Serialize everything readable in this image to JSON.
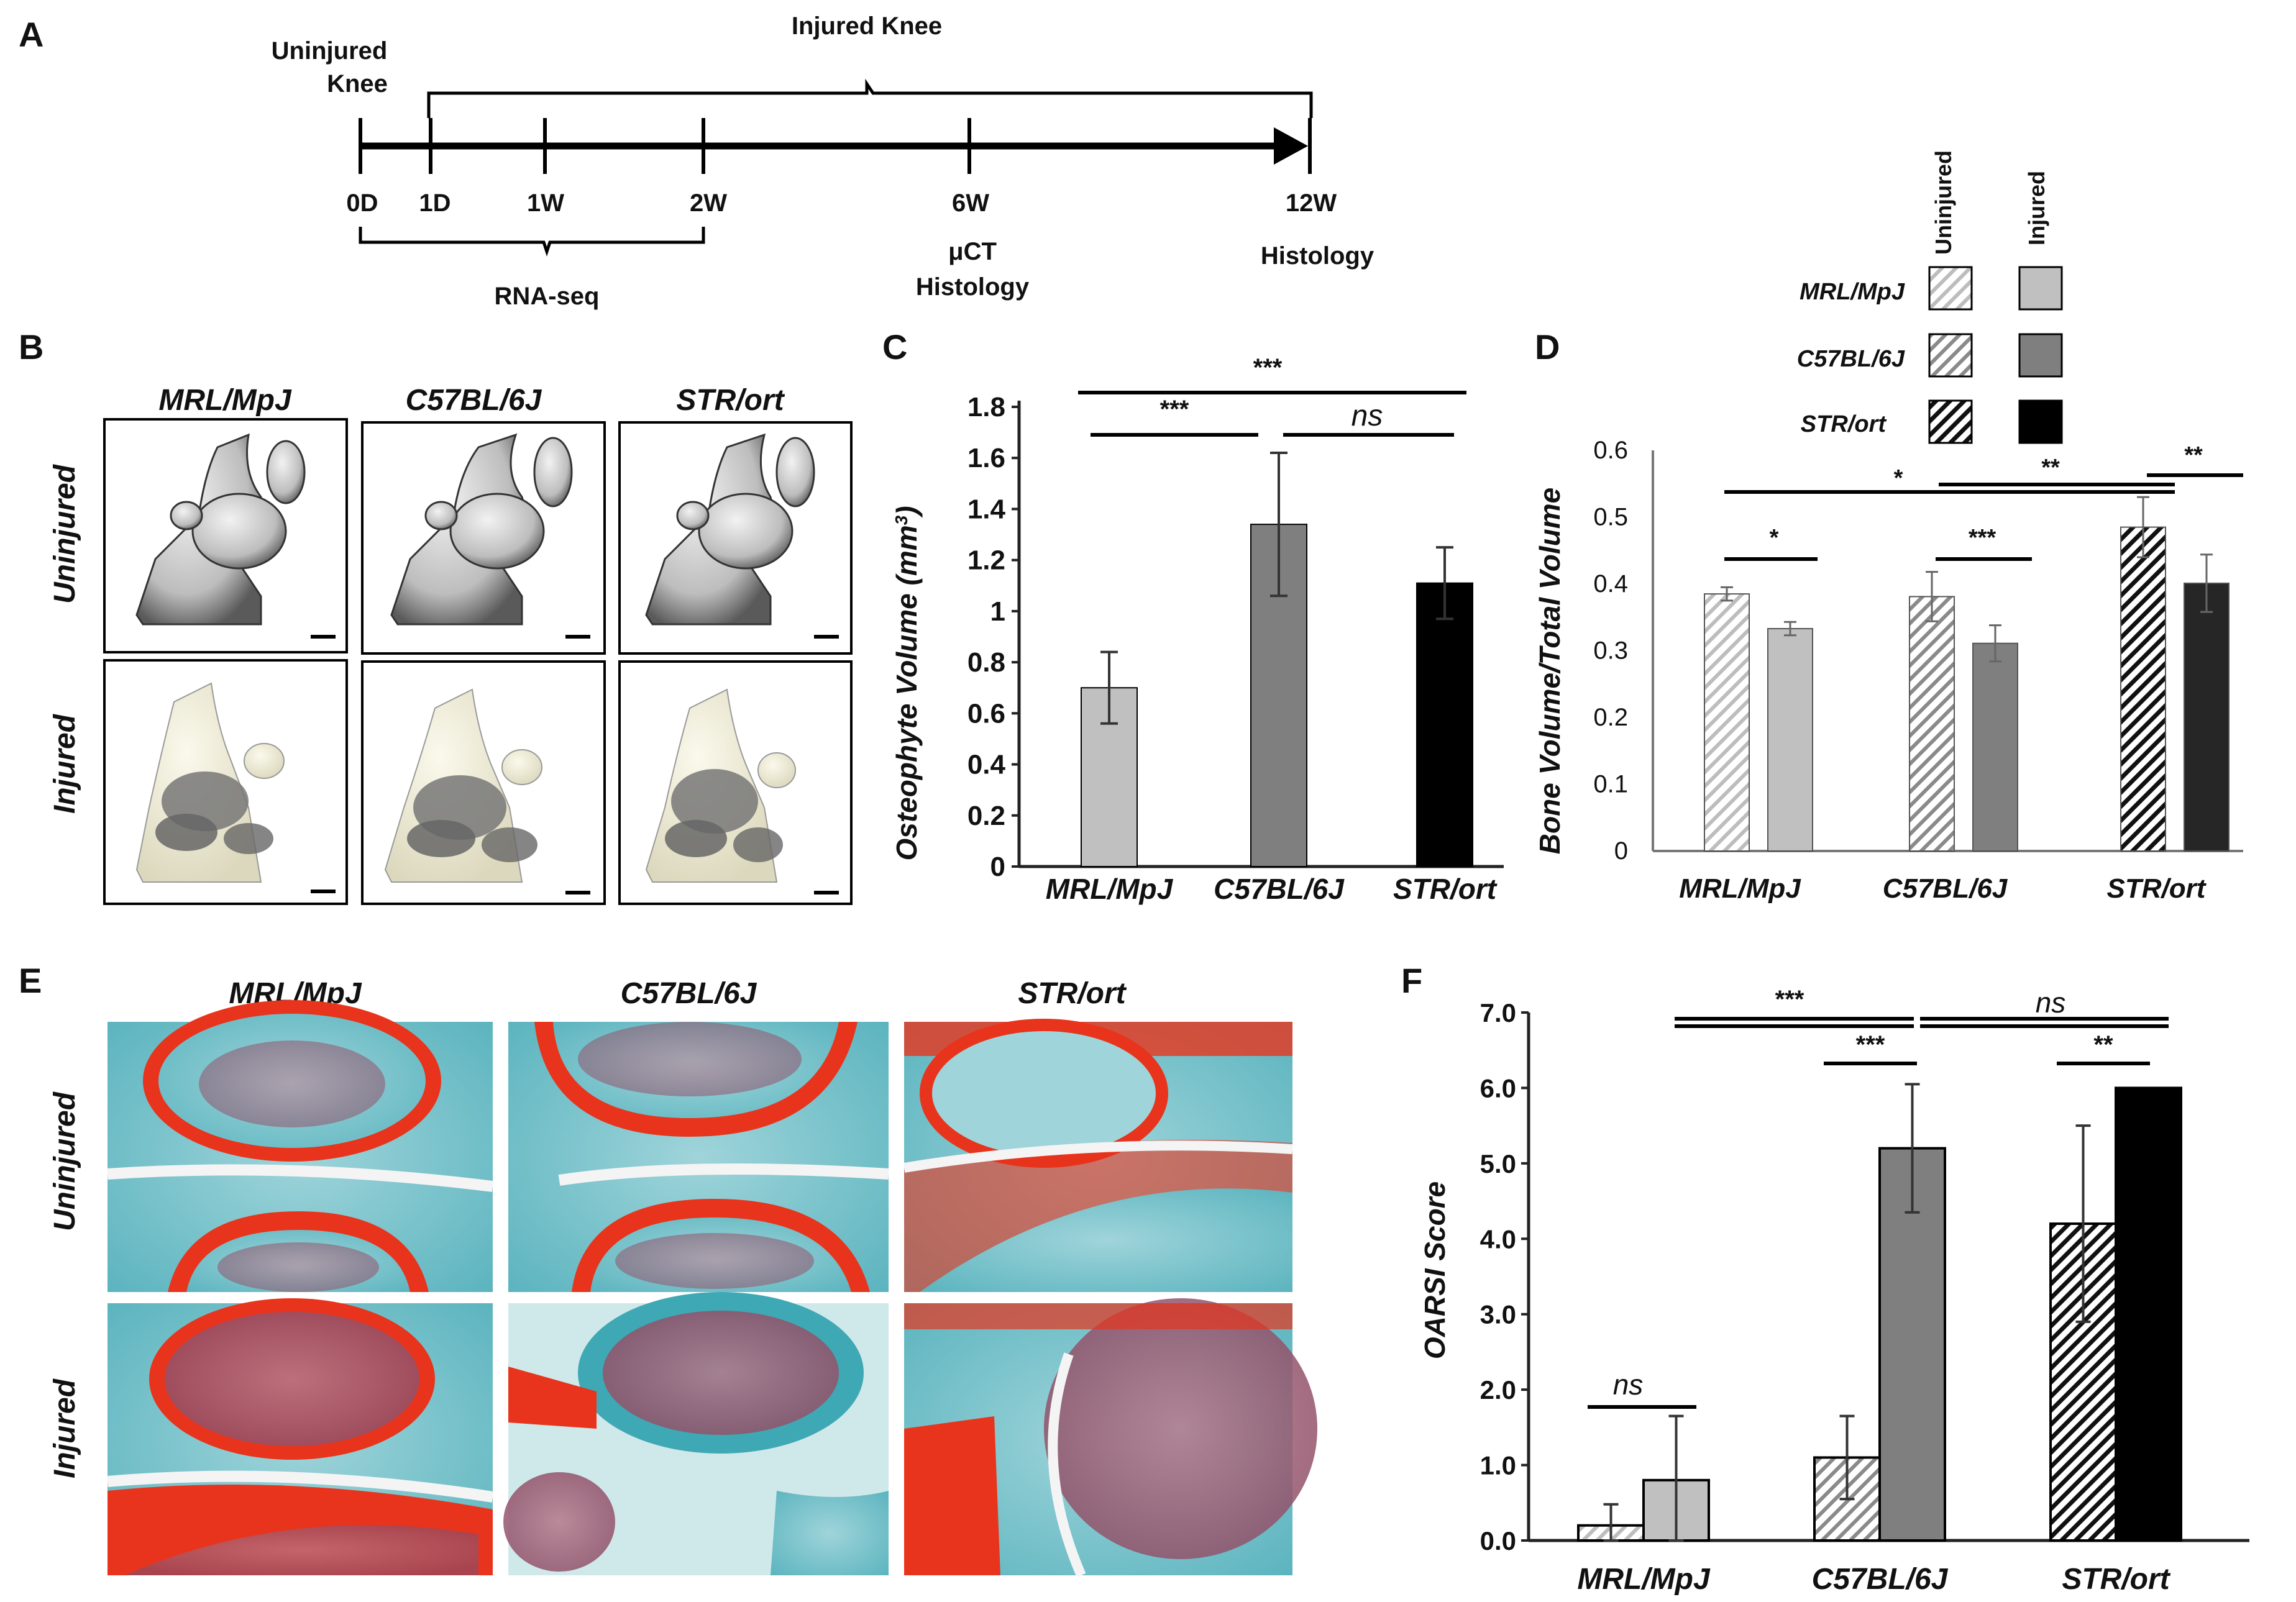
{
  "panels": {
    "A": "A",
    "B": "B",
    "C": "C",
    "D": "D",
    "E": "E",
    "F": "F"
  },
  "timeline": {
    "uninjured_label_1": "Uninjured",
    "uninjured_label_2": "Knee",
    "injured_label": "Injured Knee",
    "ticks": [
      "0D",
      "1D",
      "1W",
      "2W",
      "6W",
      "12W"
    ],
    "rnaseq": "RNA-seq",
    "uct": "μCT",
    "histology_6w": "Histology",
    "histology_12w": "Histology"
  },
  "strains": [
    "MRL/MpJ",
    "C57BL/6J",
    "STR/ort"
  ],
  "conditions": [
    "Uninjured",
    "Injured"
  ],
  "legend": {
    "col_uninjured": "Uninjured",
    "col_injured": "Injured",
    "rows": [
      "MRL/MpJ",
      "C57BL/6J",
      "STR/ort"
    ]
  },
  "colors": {
    "mrl": "#c0c0c0",
    "c57": "#7f7f7f",
    "str": "#000000",
    "str_d": "#262626"
  },
  "chart_data": [
    {
      "panel": "C",
      "type": "bar",
      "ylabel": "Osteophyte Volume (mm³)",
      "ylabel_main": "Osteophyte Volume (mm",
      "ylabel_sup": "3",
      "ylabel_end": ")",
      "categories": [
        "MRL/MpJ",
        "C57BL/6J",
        "STR/ort"
      ],
      "values": [
        0.7,
        1.34,
        1.11
      ],
      "errors": [
        0.14,
        0.28,
        0.14
      ],
      "ylim": [
        0,
        1.8
      ],
      "yticks": [
        "0",
        "0.2",
        "0.4",
        "0.6",
        "0.8",
        "1",
        "1.2",
        "1.4",
        "1.6",
        "1.8"
      ],
      "significance": [
        "***",
        "***",
        "ns"
      ]
    },
    {
      "panel": "D",
      "type": "bar",
      "ylabel": "Bone Volume/Total Volume",
      "categories": [
        "MRL/MpJ",
        "C57BL/6J",
        "STR/ort"
      ],
      "series": [
        {
          "name": "Uninjured",
          "values": [
            0.385,
            0.381,
            0.485
          ],
          "errors": [
            0.01,
            0.037,
            0.045
          ]
        },
        {
          "name": "Injured",
          "values": [
            0.333,
            0.311,
            0.401
          ],
          "errors": [
            0.01,
            0.027,
            0.043
          ]
        }
      ],
      "ylim": [
        0,
        0.6
      ],
      "yticks": [
        "0",
        "0.1",
        "0.2",
        "0.3",
        "0.4",
        "0.5",
        "0.6"
      ],
      "significance": [
        "*",
        "***",
        "**",
        "*",
        "**"
      ]
    },
    {
      "panel": "F",
      "type": "bar",
      "ylabel": "OARSI Score",
      "categories": [
        "MRL/MpJ",
        "C57BL/6J",
        "STR/ort"
      ],
      "series": [
        {
          "name": "Uninjured",
          "values": [
            0.2,
            1.1,
            4.2
          ],
          "errors": [
            0.28,
            0.55,
            1.3
          ]
        },
        {
          "name": "Injured",
          "values": [
            0.8,
            5.2,
            6.0
          ],
          "errors": [
            0.85,
            0.85,
            0
          ]
        }
      ],
      "ylim": [
        0,
        7
      ],
      "yticks": [
        "0.0",
        "1.0",
        "2.0",
        "3.0",
        "4.0",
        "5.0",
        "6.0",
        "7.0"
      ],
      "significance": [
        "ns",
        "***",
        "***",
        "ns",
        "**"
      ]
    }
  ]
}
